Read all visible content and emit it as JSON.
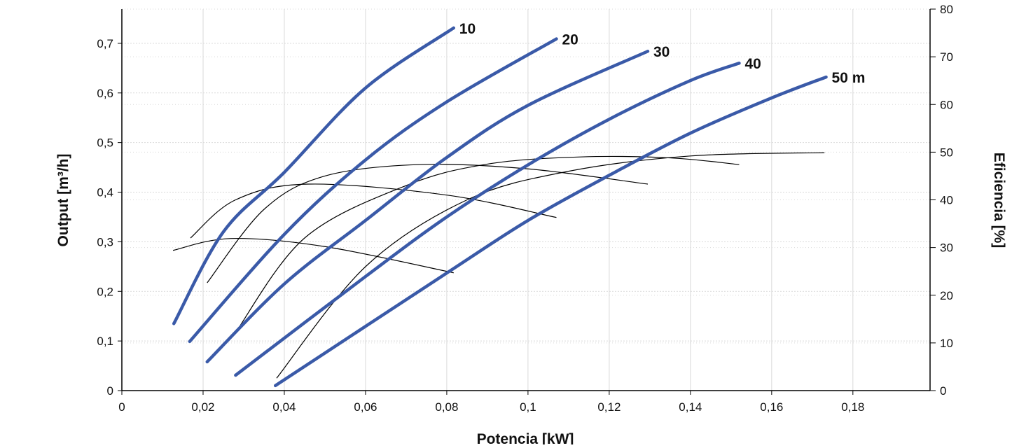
{
  "chart_data": {
    "type": "line",
    "xlabel": "Potencia [kW]",
    "ylabel": "Output [m³/h]",
    "y2label": "Eficiencia [%]",
    "xlim": [
      0,
      0.199
    ],
    "ylim": [
      0,
      0.769
    ],
    "y2lim": [
      0,
      80
    ],
    "x_ticks": [
      "0",
      "0,02",
      "0,04",
      "0,06",
      "0,08",
      "0,1",
      "0,12",
      "0,14",
      "0,16",
      "0,18"
    ],
    "x_tick_values": [
      0,
      0.02,
      0.04,
      0.06,
      0.08,
      0.1,
      0.12,
      0.14,
      0.16,
      0.18
    ],
    "y_ticks": [
      "0",
      "0,1",
      "0,2",
      "0,3",
      "0,4",
      "0,5",
      "0,6",
      "0,7"
    ],
    "y_tick_values": [
      0,
      0.1,
      0.2,
      0.3,
      0.4,
      0.5,
      0.6,
      0.7
    ],
    "y2_ticks": [
      "0",
      "10",
      "20",
      "30",
      "40",
      "50",
      "60",
      "70",
      "80"
    ],
    "y2_tick_values": [
      0,
      10,
      20,
      30,
      40,
      50,
      60,
      70,
      80
    ],
    "grid": true,
    "colors": {
      "output": "#3a5aa8",
      "efficiency": "#000000",
      "grid": "#d9d9d9"
    },
    "output_series": [
      {
        "name": "10",
        "points": [
          [
            0.0128,
            0.135
          ],
          [
            0.025,
            0.32
          ],
          [
            0.04,
            0.44
          ],
          [
            0.06,
            0.61
          ],
          [
            0.0817,
            0.731
          ]
        ]
      },
      {
        "name": "20",
        "points": [
          [
            0.0167,
            0.099
          ],
          [
            0.04,
            0.315
          ],
          [
            0.06,
            0.465
          ],
          [
            0.08,
            0.582
          ],
          [
            0.107,
            0.709
          ]
        ]
      },
      {
        "name": "30",
        "points": [
          [
            0.021,
            0.058
          ],
          [
            0.04,
            0.215
          ],
          [
            0.06,
            0.343
          ],
          [
            0.08,
            0.47
          ],
          [
            0.1,
            0.575
          ],
          [
            0.1295,
            0.684
          ]
        ]
      },
      {
        "name": "40",
        "points": [
          [
            0.028,
            0.031
          ],
          [
            0.06,
            0.23
          ],
          [
            0.08,
            0.35
          ],
          [
            0.1,
            0.455
          ],
          [
            0.12,
            0.547
          ],
          [
            0.14,
            0.625
          ],
          [
            0.152,
            0.66
          ]
        ]
      },
      {
        "name": "50 m",
        "points": [
          [
            0.0378,
            0.01
          ],
          [
            0.08,
            0.237
          ],
          [
            0.1,
            0.343
          ],
          [
            0.12,
            0.434
          ],
          [
            0.14,
            0.519
          ],
          [
            0.16,
            0.59
          ],
          [
            0.1734,
            0.632
          ]
        ]
      }
    ],
    "efficiency_series": [
      {
        "points": [
          [
            0.0126,
            29.4
          ],
          [
            0.0269,
            31.9
          ],
          [
            0.05,
            30.2
          ],
          [
            0.0817,
            24.7
          ]
        ]
      },
      {
        "points": [
          [
            0.0169,
            32
          ],
          [
            0.028,
            40
          ],
          [
            0.0459,
            43.3
          ],
          [
            0.08,
            41
          ],
          [
            0.107,
            36.3
          ]
        ]
      },
      {
        "points": [
          [
            0.021,
            22.6
          ],
          [
            0.035,
            38
          ],
          [
            0.05,
            45
          ],
          [
            0.0734,
            47.4
          ],
          [
            0.1,
            46.5
          ],
          [
            0.1295,
            43.3
          ]
        ]
      },
      {
        "points": [
          [
            0.028,
            12.2
          ],
          [
            0.045,
            32
          ],
          [
            0.07,
            43
          ],
          [
            0.09,
            47.5
          ],
          [
            0.113,
            49
          ],
          [
            0.135,
            48.8
          ],
          [
            0.152,
            47.4
          ]
        ]
      },
      {
        "points": [
          [
            0.0381,
            2.6
          ],
          [
            0.06,
            26
          ],
          [
            0.085,
            40
          ],
          [
            0.11,
            46
          ],
          [
            0.14,
            49.2
          ],
          [
            0.173,
            49.9
          ]
        ]
      }
    ]
  }
}
